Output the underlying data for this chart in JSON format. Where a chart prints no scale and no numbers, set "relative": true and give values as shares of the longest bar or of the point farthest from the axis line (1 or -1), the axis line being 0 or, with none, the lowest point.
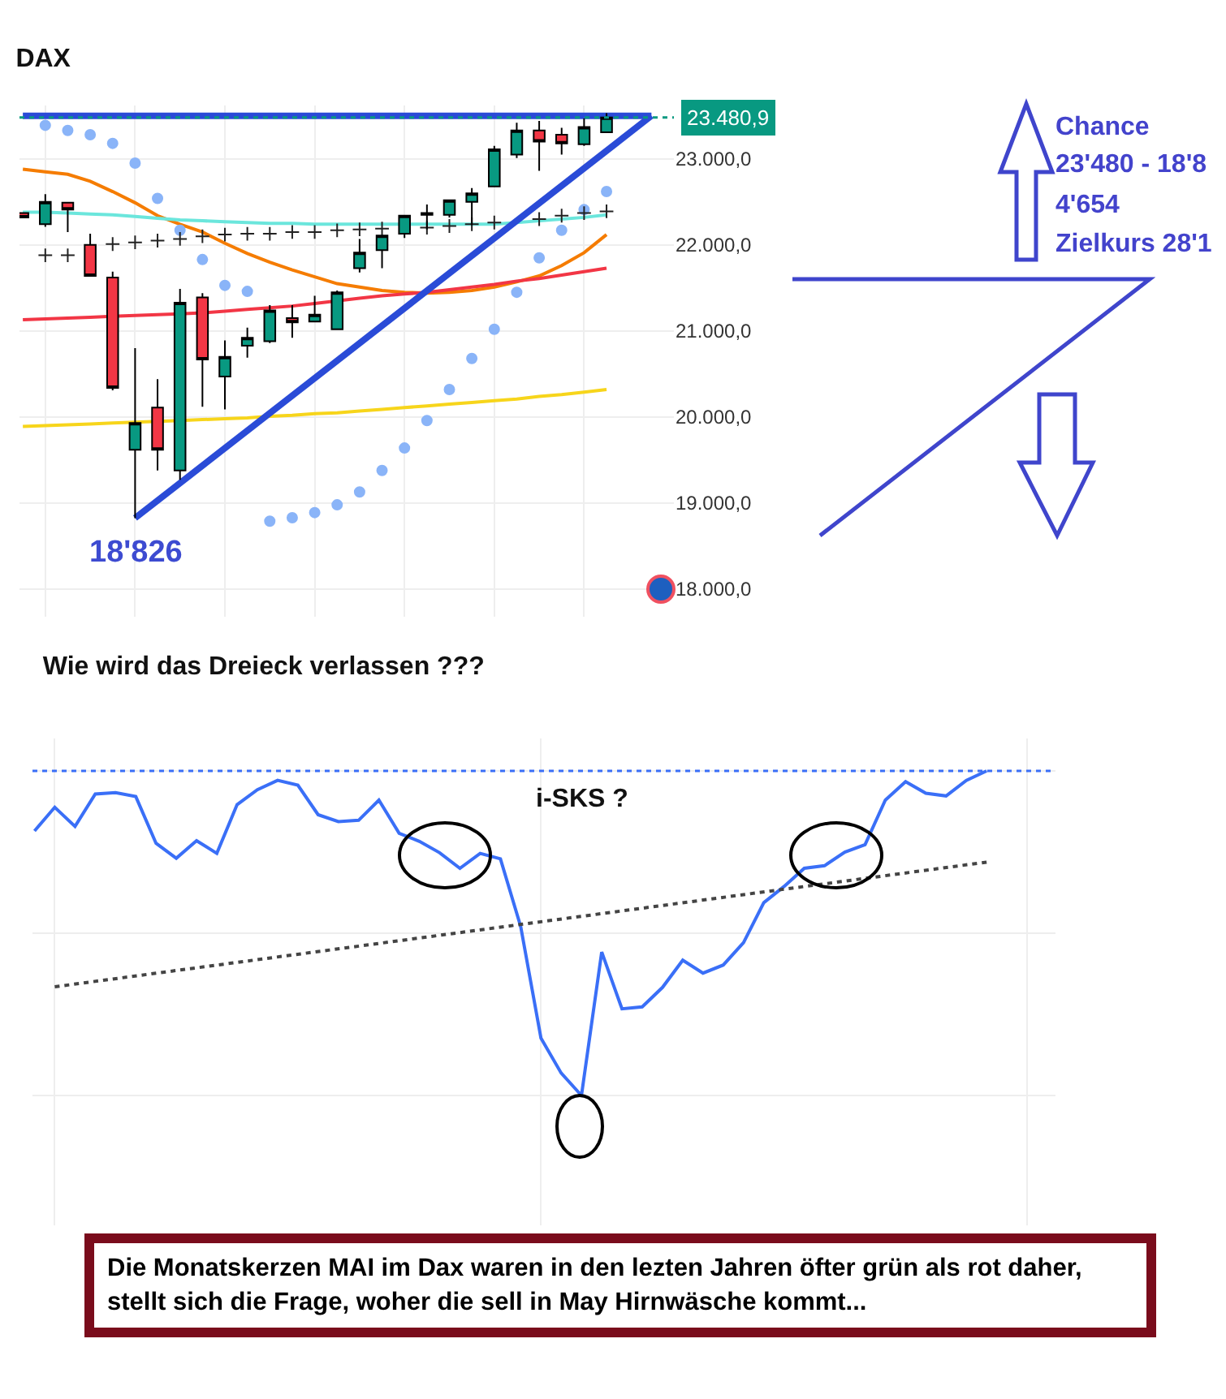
{
  "chart_data": [
    {
      "type": "candlestick",
      "title": "DAX",
      "categories": [
        null,
        null,
        null,
        null,
        null,
        null,
        null,
        null,
        null,
        null,
        null,
        null,
        null,
        null,
        null,
        null,
        null,
        null,
        null,
        null,
        null,
        null,
        null,
        null,
        null,
        null,
        null,
        null,
        null
      ],
      "ohlc": [
        [
          22370,
          22380,
          22310,
          22320
        ],
        [
          22240,
          22590,
          22210,
          22500
        ],
        [
          22490,
          22500,
          22150,
          22410
        ],
        [
          22000,
          22130,
          21640,
          21640
        ],
        [
          21620,
          21690,
          20310,
          20340
        ],
        [
          19620,
          20800,
          18826,
          19930
        ],
        [
          20110,
          20440,
          19380,
          19620
        ],
        [
          19380,
          21490,
          19270,
          21330
        ],
        [
          21390,
          21440,
          20120,
          20670
        ],
        [
          20470,
          20890,
          20090,
          20700
        ],
        [
          20830,
          21040,
          20690,
          20920
        ],
        [
          20880,
          21300,
          20860,
          21240
        ],
        [
          21150,
          21300,
          20920,
          21100
        ],
        [
          21110,
          21410,
          21110,
          21190
        ],
        [
          21020,
          21470,
          21020,
          21450
        ],
        [
          21730,
          22070,
          21680,
          21910
        ],
        [
          21940,
          22110,
          21730,
          22110
        ],
        [
          22130,
          22340,
          22080,
          22340
        ],
        [
          22350,
          22470,
          22180,
          22370
        ],
        [
          22350,
          22520,
          22320,
          22520
        ],
        [
          22500,
          22660,
          22230,
          22600
        ],
        [
          22680,
          23150,
          22680,
          23110
        ],
        [
          23050,
          23420,
          23010,
          23330
        ],
        [
          23330,
          23440,
          22860,
          23200
        ],
        [
          23280,
          23360,
          23050,
          23180
        ],
        [
          23170,
          23470,
          23150,
          23370
        ],
        [
          23310,
          23530,
          23310,
          23480.9
        ],
        null,
        null
      ],
      "colors": [
        "#f23645",
        "#089981",
        "#f23645",
        "#f23645",
        "#f23645",
        "#089981",
        "#f23645",
        "#089981",
        "#f23645",
        "#089981",
        "#089981",
        "#089981",
        "#f23645",
        "#089981",
        "#089981",
        "#089981",
        "#089981",
        "#089981",
        "#000000",
        "#089981",
        "#089981",
        "#089981",
        "#089981",
        "#f23645",
        "#f23645",
        "#089981",
        "#089981",
        null,
        null
      ],
      "series": [
        {
          "type": "line",
          "color": "#f57c00",
          "values": [
            22880,
            22850,
            22820,
            22740,
            22620,
            22490,
            22340,
            22240,
            22150,
            22020,
            21900,
            21800,
            21710,
            21630,
            21550,
            21510,
            21470,
            21450,
            21440,
            21450,
            21470,
            21510,
            21570,
            21640,
            21760,
            21910,
            22120,
            null,
            null
          ]
        },
        {
          "type": "line",
          "color": "#f23645",
          "values": [
            21130,
            21140,
            21150,
            21160,
            21170,
            21180,
            21190,
            21200,
            21210,
            21230,
            21250,
            21270,
            21290,
            21320,
            21350,
            21380,
            21410,
            21430,
            21450,
            21480,
            21510,
            21540,
            21580,
            21610,
            21650,
            21690,
            21730,
            null,
            null
          ]
        },
        {
          "type": "line",
          "color": "#f7d51b",
          "values": [
            19890,
            19900,
            19910,
            19920,
            19930,
            19940,
            19950,
            19960,
            19970,
            19980,
            19990,
            20010,
            20020,
            20040,
            20050,
            20070,
            20090,
            20110,
            20130,
            20150,
            20170,
            20190,
            20210,
            20240,
            20260,
            20290,
            20320,
            null,
            null
          ]
        },
        {
          "type": "line",
          "color": "#6be6dc",
          "values": [
            22380,
            22380,
            22370,
            22360,
            22350,
            22330,
            22310,
            22290,
            22280,
            22270,
            22260,
            22250,
            22250,
            22240,
            22240,
            22240,
            22240,
            22240,
            22240,
            22240,
            22240,
            22240,
            22260,
            22280,
            22300,
            22320,
            22350,
            null,
            null
          ]
        },
        {
          "type": "scatter",
          "color": "#8ab4f8",
          "marker": "circle",
          "values": [
            null,
            23390,
            23330,
            23280,
            23180,
            22950,
            22540,
            22170,
            21830,
            21530,
            21460,
            18790,
            18830,
            18890,
            18980,
            19130,
            19380,
            19640,
            19960,
            20320,
            20680,
            21020,
            21450,
            21850,
            22170,
            22410,
            22620,
            null,
            null
          ]
        },
        {
          "type": "scatter",
          "color": "#222222",
          "marker": "cross",
          "values": [
            null,
            21880,
            21880,
            null,
            22010,
            22030,
            22050,
            22070,
            22100,
            22120,
            22130,
            22130,
            22150,
            22150,
            22170,
            22180,
            22190,
            null,
            22200,
            22220,
            22240,
            22260,
            null,
            22300,
            22340,
            22370,
            22390,
            null,
            null
          ]
        },
        {
          "type": "line",
          "color": "#2a4bd7",
          "values": [
            23500,
            null,
            null,
            null,
            null,
            null,
            null,
            null,
            null,
            null,
            null,
            null,
            null,
            null,
            null,
            null,
            null,
            null,
            null,
            null,
            null,
            null,
            null,
            null,
            null,
            null,
            null,
            null,
            23500
          ]
        },
        {
          "type": "line",
          "color": "#2a4bd7",
          "values": [
            null,
            null,
            null,
            null,
            null,
            18826,
            null,
            null,
            null,
            null,
            null,
            null,
            null,
            null,
            null,
            null,
            null,
            null,
            null,
            null,
            null,
            null,
            null,
            null,
            null,
            null,
            null,
            null,
            23500
          ]
        }
      ],
      "ylim": [
        17680,
        23620
      ],
      "yticks": [
        {
          "value": 18000,
          "label": "18.000,0"
        },
        {
          "value": 19000,
          "label": "19.000,0"
        },
        {
          "value": 20000,
          "label": "20.000,0"
        },
        {
          "value": 21000,
          "label": "21.000,0"
        },
        {
          "value": 22000,
          "label": "22.000,0"
        },
        {
          "value": 23000,
          "label": "23.000,0"
        }
      ],
      "ref_lines": [
        {
          "axis": "y",
          "value": 23480.9,
          "label": "23.480,9",
          "color": "#089981",
          "line_style": "dotted"
        }
      ],
      "annotations": [
        "18'826",
        "Chance",
        "23'480 - 18'8",
        "4'654",
        "Zielkurs 28'1"
      ],
      "grid": true,
      "tick_labels": "y"
    },
    {
      "type": "line",
      "title": "Wie wird das Dreieck verlassen ???",
      "relative": true,
      "categories": [
        null,
        null,
        null,
        null,
        null,
        null,
        null,
        null,
        null,
        null,
        null,
        null,
        null,
        null,
        null,
        null,
        null,
        null,
        null,
        null,
        null,
        null,
        null,
        null,
        null,
        null,
        null,
        null,
        null,
        null,
        null,
        null,
        null,
        null,
        null,
        null,
        null,
        null,
        null,
        null,
        null,
        null,
        null,
        null,
        null,
        null,
        null,
        null
      ],
      "series": [
        {
          "color": "#3a6ff7",
          "values": [
            0.815,
            0.888,
            0.829,
            0.929,
            0.933,
            0.921,
            0.777,
            0.731,
            0.785,
            0.746,
            0.896,
            0.942,
            0.971,
            0.956,
            0.865,
            0.844,
            0.848,
            0.91,
            0.808,
            0.783,
            0.748,
            0.7,
            0.746,
            0.729,
            0.521,
            0.177,
            0.069,
            0,
            0.442,
            0.267,
            0.273,
            0.333,
            0.417,
            0.377,
            0.402,
            0.471,
            0.594,
            0.644,
            0.7,
            0.708,
            0.75,
            0.773,
            0.91,
            0.967,
            0.931,
            0.923,
            0.971,
            1
          ]
        },
        {
          "color": "#444444",
          "line_style": "dotted",
          "values": [
            null,
            0.335,
            null,
            null,
            null,
            null,
            null,
            null,
            null,
            null,
            null,
            null,
            null,
            null,
            null,
            null,
            null,
            null,
            null,
            null,
            null,
            null,
            null,
            null,
            null,
            null,
            null,
            null,
            null,
            null,
            null,
            null,
            null,
            null,
            null,
            null,
            null,
            null,
            null,
            null,
            null,
            null,
            null,
            null,
            null,
            null,
            null,
            0.719
          ]
        }
      ],
      "ref_lines": [
        {
          "axis": "y",
          "value": 1,
          "color": "#3a6ff7",
          "line_style": "dotted"
        }
      ],
      "annotations": [
        "i-SKS ?",
        "Die Monatskerzen MAI im Dax waren in den lezten Jahren öfter grün als rot daher, stellt sich die Frage, woher die sell in May Hirnwäsche kommt..."
      ],
      "grid": true,
      "tick_labels": false
    }
  ]
}
